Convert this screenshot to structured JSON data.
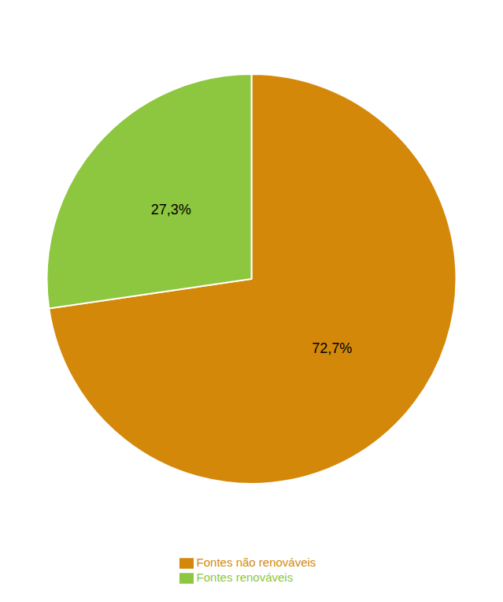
{
  "chart_data": {
    "type": "pie",
    "categories": [
      "Fontes não renováveis",
      "Fontes renováveis"
    ],
    "values": [
      72.7,
      27.3
    ],
    "value_labels": [
      "72,7%",
      "27,3%"
    ],
    "colors": [
      "#D4880A",
      "#8DC63F"
    ],
    "data_labels": true,
    "legend": "bottom"
  }
}
